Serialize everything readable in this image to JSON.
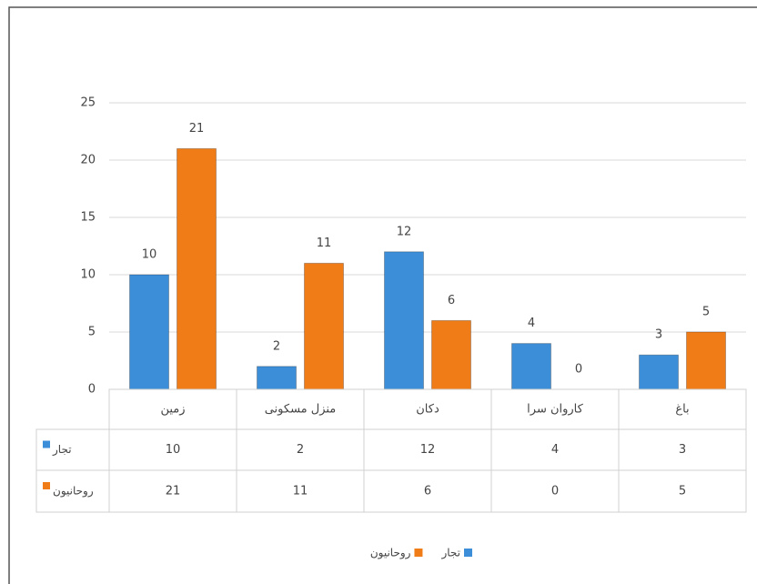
{
  "chart_data": {
    "type": "bar",
    "categories": [
      "زمین",
      "منزل مسکونی",
      "دکان",
      "کاروان سرا",
      "باغ"
    ],
    "series": [
      {
        "name": "تجار",
        "color": "#3d8ed8",
        "values": [
          10,
          2,
          12,
          4,
          3
        ]
      },
      {
        "name": "روحانیون",
        "color": "#f07c18",
        "values": [
          21,
          11,
          6,
          0,
          5
        ]
      }
    ],
    "ylim": [
      0,
      25
    ],
    "yticks": [
      0,
      5,
      10,
      15,
      20,
      25
    ],
    "grid": true,
    "legend": "bottom"
  }
}
